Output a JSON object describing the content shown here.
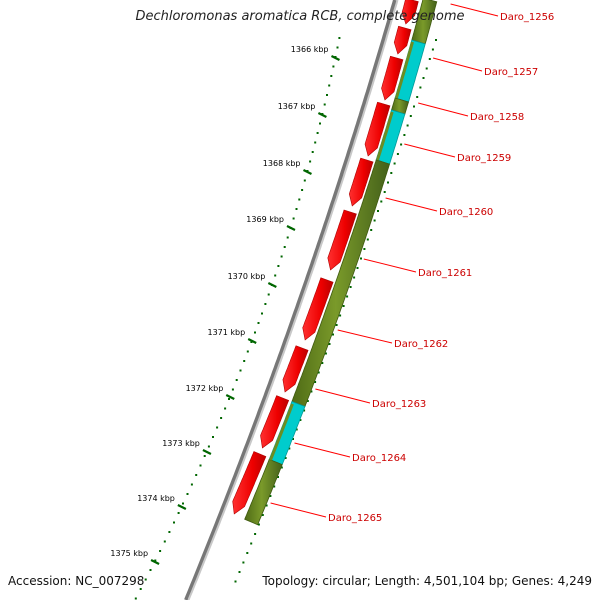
{
  "title": "Dechloromonas aromatica RCB, complete genome",
  "accession": "Accession: NC_007298",
  "topology": "Topology: circular; Length: 4,501,104 bp; Genes: 4,249",
  "colors": {
    "backbone_outer": "#777777",
    "backbone_inner": "#c8c8c8",
    "cds": "#ff0000",
    "cds_dark": "#b00000",
    "gene_track": "#6b8e23",
    "gene_track_dark": "#3f5a10",
    "gene_highlight": "#00cccc",
    "label": "#cc0000",
    "label_line": "#ff0000",
    "tick": "#006600",
    "tick_label": "#000000",
    "dots": "#006600"
  },
  "scale": {
    "unit": "kbp",
    "ticks": [
      {
        "label": "1366 kbp"
      },
      {
        "label": "1367 kbp"
      },
      {
        "label": "1368 kbp"
      },
      {
        "label": "1369 kbp"
      },
      {
        "label": "1370 kbp"
      },
      {
        "label": "1371 kbp"
      },
      {
        "label": "1372 kbp"
      },
      {
        "label": "1373 kbp"
      },
      {
        "label": "1374 kbp"
      },
      {
        "label": "1375 kbp"
      }
    ]
  },
  "genes": [
    {
      "name": "Daro_1256"
    },
    {
      "name": "Daro_1257"
    },
    {
      "name": "Daro_1258"
    },
    {
      "name": "Daro_1259"
    },
    {
      "name": "Daro_1260"
    },
    {
      "name": "Daro_1261"
    },
    {
      "name": "Daro_1262"
    },
    {
      "name": "Daro_1263"
    },
    {
      "name": "Daro_1264"
    },
    {
      "name": "Daro_1265"
    }
  ]
}
